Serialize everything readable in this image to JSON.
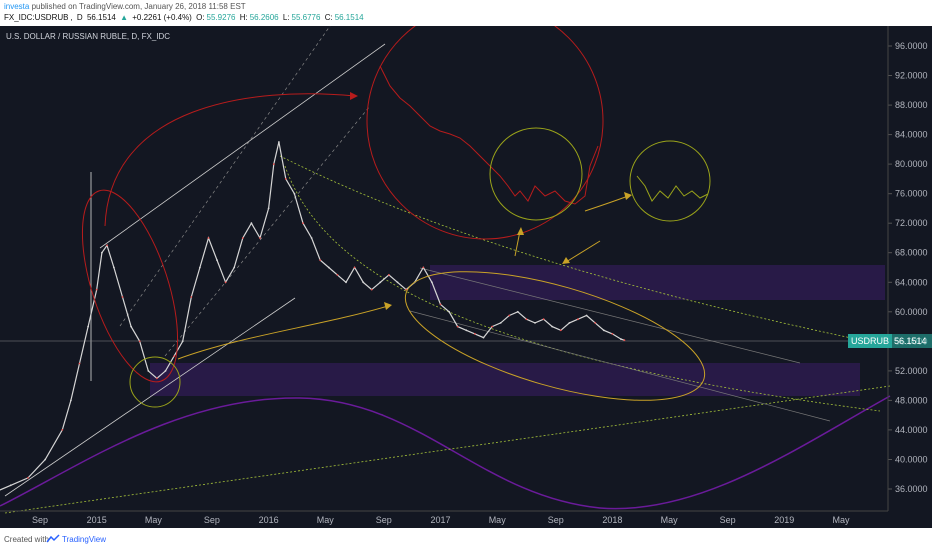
{
  "header": {
    "author": "investa",
    "published": "published on TradingView.com, January 26, 2018 11:58 EST",
    "symbol": "FX_IDC:USDRUB",
    "interval": "D",
    "last": "56.1514",
    "change": "+0.2261 (+0.4%)",
    "open_label": "O:",
    "open": "55.9276",
    "high_label": "H:",
    "high": "56.2606",
    "low_label": "L:",
    "low": "55.6776",
    "close_label": "C:",
    "close": "56.1514"
  },
  "chart_title": "U.S. DOLLAR / RUSSIAN RUBLE, D, FX_IDC",
  "footer": {
    "created_with": "Created with",
    "brand": "TradingView"
  },
  "colors": {
    "background": "#131722",
    "candles": "#d6d6d6",
    "red_annotation": "#b71c1c",
    "yellow_annotation": "#c9a227",
    "green_annotation": "#9aa31a",
    "purple_zone": "#2d1b4e",
    "purple_wave": "#6a1b9a",
    "price_tag": "#26a69a"
  },
  "chart_data": {
    "type": "line",
    "symbol_tag": "USDRUB",
    "last_price": "56.1514",
    "ylim": [
      32,
      100
    ],
    "y_ticks": [
      "36.0000",
      "40.0000",
      "44.0000",
      "48.0000",
      "52.0000",
      "56.0000",
      "60.0000",
      "64.0000",
      "68.0000",
      "72.0000",
      "76.0000",
      "80.0000",
      "84.0000",
      "88.0000",
      "92.0000",
      "96.0000"
    ],
    "x_ticks": [
      "Sep",
      "2015",
      "May",
      "Sep",
      "2016",
      "May",
      "Sep",
      "2017",
      "May",
      "Sep",
      "2018",
      "May",
      "Sep",
      "2019",
      "May"
    ],
    "x_tick_dates": [
      2014.67,
      2015.0,
      2015.33,
      2015.67,
      2016.0,
      2016.33,
      2016.67,
      2017.0,
      2017.33,
      2017.67,
      2018.0,
      2018.33,
      2018.67,
      2019.0,
      2019.33
    ],
    "x": [
      2014.3,
      2014.4,
      2014.5,
      2014.6,
      2014.7,
      2014.8,
      2014.85,
      2014.9,
      2014.95,
      2015.0,
      2015.03,
      2015.06,
      2015.1,
      2015.15,
      2015.2,
      2015.25,
      2015.3,
      2015.35,
      2015.4,
      2015.45,
      2015.5,
      2015.55,
      2015.6,
      2015.65,
      2015.7,
      2015.75,
      2015.8,
      2015.85,
      2015.9,
      2015.95,
      2016.0,
      2016.03,
      2016.06,
      2016.1,
      2016.15,
      2016.2,
      2016.25,
      2016.3,
      2016.35,
      2016.4,
      2016.45,
      2016.5,
      2016.55,
      2016.6,
      2016.65,
      2016.7,
      2016.75,
      2016.8,
      2016.85,
      2016.9,
      2016.95,
      2017.0,
      2017.05,
      2017.1,
      2017.15,
      2017.2,
      2017.25,
      2017.3,
      2017.35,
      2017.4,
      2017.45,
      2017.5,
      2017.55,
      2017.6,
      2017.65,
      2017.7,
      2017.75,
      2017.8,
      2017.85,
      2017.9,
      2017.95,
      2018.0,
      2018.05,
      2018.07
    ],
    "y": [
      34.0,
      35.5,
      36.5,
      37.5,
      40.0,
      44.0,
      48.0,
      53.0,
      58.0,
      63.0,
      68.0,
      69.0,
      66.0,
      62.0,
      58.0,
      56.0,
      52.0,
      51.0,
      52.0,
      54.0,
      56.0,
      62.0,
      66.0,
      70.0,
      67.0,
      64.0,
      66.0,
      70.0,
      72.0,
      70.0,
      74.0,
      80.0,
      83.0,
      78.0,
      76.0,
      72.0,
      70.0,
      67.0,
      66.0,
      65.0,
      64.0,
      66.0,
      64.0,
      63.0,
      64.0,
      65.0,
      64.0,
      63.0,
      64.0,
      66.0,
      64.0,
      61.0,
      60.0,
      58.0,
      57.5,
      57.0,
      56.5,
      58.0,
      58.5,
      59.5,
      60.0,
      59.0,
      58.5,
      59.0,
      58.0,
      57.5,
      58.5,
      59.0,
      59.5,
      58.5,
      57.5,
      57.0,
      56.3,
      56.15
    ]
  }
}
